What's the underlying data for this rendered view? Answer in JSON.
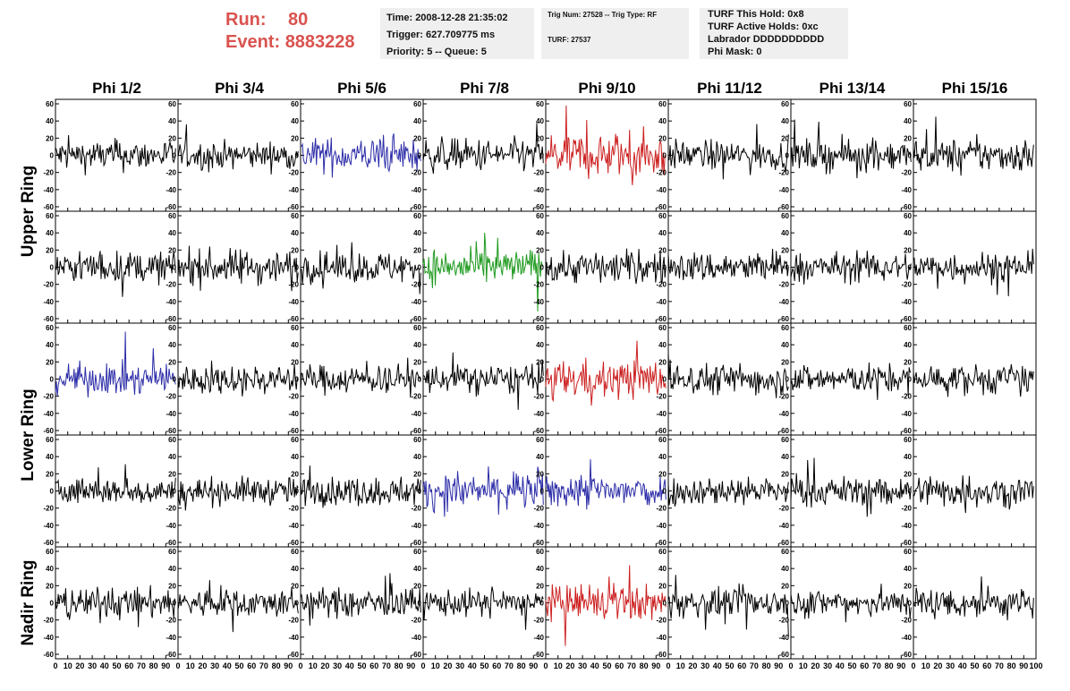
{
  "run": {
    "run_label": "Run:",
    "run_value": "80",
    "event_label": "Event:",
    "event_value": "8883228"
  },
  "info_time": {
    "time": "Time: 2008-12-28 21:35:02",
    "trigger": "Trigger: 627.709775 ms",
    "priority": "Priority: 5 -- Queue: 5"
  },
  "info_trig": {
    "trig": "Trig Num: 27528 -- Trig Type: RF",
    "turf": "TURF: 27537"
  },
  "info_turf": {
    "hold": "TURF This Hold: 0x8",
    "active": "TURF Active Holds: 0xc",
    "labrador": "Labrador DDDDDDDDDD",
    "phimask": "Phi Mask: 0"
  },
  "chart_data": {
    "type": "line",
    "columns": [
      "Phi 1/2",
      "Phi 3/4",
      "Phi 5/6",
      "Phi 7/8",
      "Phi 9/10",
      "Phi 11/12",
      "Phi 13/14",
      "Phi 15/16"
    ],
    "row_groups": [
      {
        "label": "Upper Ring",
        "rows": [
          0,
          1
        ]
      },
      {
        "label": "Lower Ring",
        "rows": [
          2,
          3
        ]
      },
      {
        "label": "Nadir Ring",
        "rows": [
          4
        ]
      }
    ],
    "xlim": [
      0,
      100
    ],
    "ylim": [
      -60,
      60
    ],
    "x_ticks": [
      0,
      10,
      20,
      30,
      40,
      50,
      60,
      70,
      80,
      90,
      100
    ],
    "y_ticks": [
      -60,
      -40,
      -20,
      0,
      20,
      40,
      60
    ],
    "colors": {
      "default": "#000000",
      "blue": "#2c2ca8",
      "green": "#1e9a1e",
      "red": "#cc2020"
    },
    "panel_colors": [
      [
        "default",
        "default",
        "blue",
        "default",
        "red",
        "default",
        "default",
        "default"
      ],
      [
        "default",
        "default",
        "default",
        "green",
        "default",
        "default",
        "default",
        "default"
      ],
      [
        "blue",
        "default",
        "default",
        "default",
        "red",
        "default",
        "default",
        "default"
      ],
      [
        "default",
        "default",
        "default",
        "blue",
        "blue",
        "default",
        "default",
        "default"
      ],
      [
        "default",
        "default",
        "default",
        "default",
        "red",
        "default",
        "default",
        "default"
      ]
    ],
    "amplitudes": [
      [
        16,
        14,
        18,
        17,
        24,
        15,
        16,
        17
      ],
      [
        16,
        18,
        16,
        18,
        17,
        16,
        15,
        16
      ],
      [
        16,
        15,
        15,
        15,
        20,
        16,
        15,
        15
      ],
      [
        14,
        14,
        15,
        19,
        18,
        15,
        15,
        16
      ],
      [
        16,
        15,
        15,
        14,
        18,
        15,
        15,
        16
      ]
    ],
    "samples_per_trace": 130
  }
}
